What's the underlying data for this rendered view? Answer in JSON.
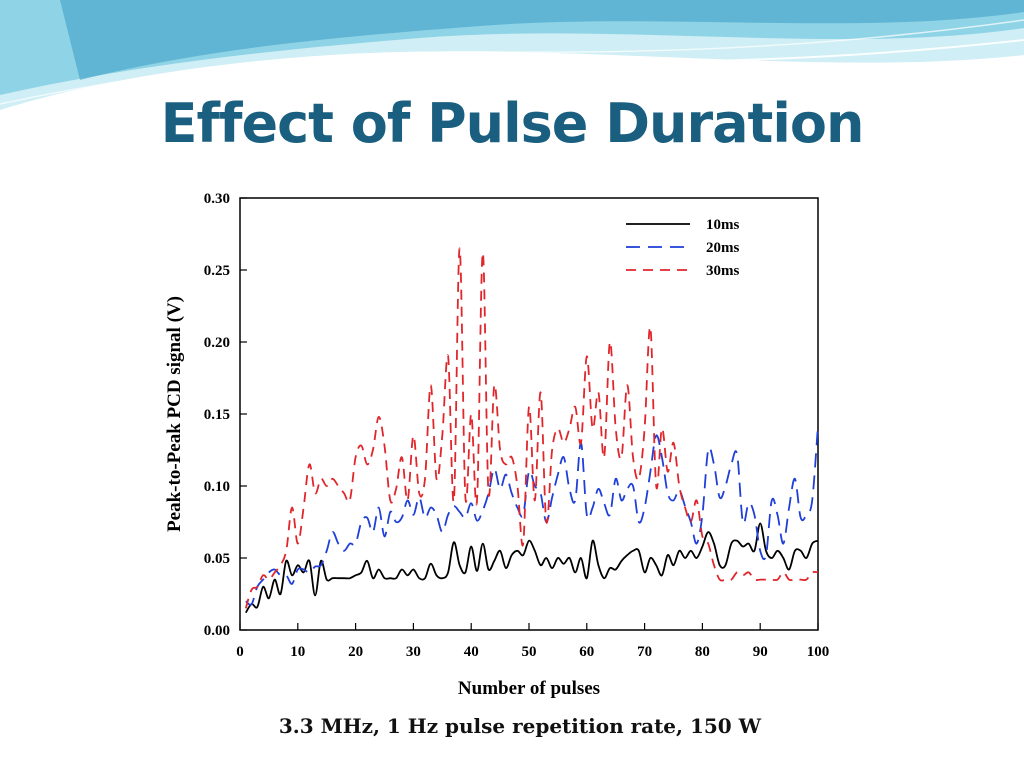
{
  "slide": {
    "title": "Effect of Pulse Duration",
    "caption": "3.3 MHz, 1 Hz pulse repetition rate, 150 W"
  },
  "colors": {
    "title": "#1b5f80",
    "swoosh_light": "#cfeef5",
    "swoosh_mid": "#8fd3e6",
    "swoosh_dark": "#3a9cc4"
  },
  "chart_data": {
    "type": "line",
    "title": "",
    "xlabel": "Number of pulses",
    "ylabel": "Peak-to-Peak PCD signal  (V)",
    "xlim": [
      0,
      100
    ],
    "ylim": [
      0,
      0.3
    ],
    "xticks": [
      0,
      10,
      20,
      30,
      40,
      50,
      60,
      70,
      80,
      90,
      100
    ],
    "yticks": [
      0.0,
      0.05,
      0.1,
      0.15,
      0.2,
      0.25,
      0.3
    ],
    "ytick_labels": [
      "0.00",
      "0.05",
      "0.10",
      "0.15",
      "0.20",
      "0.25",
      "0.30"
    ],
    "grid": false,
    "legend_position": "top-right",
    "series": [
      {
        "name": "10ms",
        "color": "#000000",
        "dash": "solid",
        "x": [
          1,
          2,
          3,
          4,
          5,
          6,
          7,
          8,
          9,
          10,
          11,
          12,
          13,
          14,
          15,
          16,
          17,
          18,
          19,
          20,
          21,
          22,
          23,
          24,
          25,
          26,
          27,
          28,
          29,
          30,
          31,
          32,
          33,
          34,
          35,
          36,
          37,
          38,
          39,
          40,
          41,
          42,
          43,
          44,
          45,
          46,
          47,
          48,
          49,
          50,
          51,
          52,
          53,
          54,
          55,
          56,
          57,
          58,
          59,
          60,
          61,
          62,
          63,
          64,
          65,
          66,
          67,
          68,
          69,
          70,
          71,
          72,
          73,
          74,
          75,
          76,
          77,
          78,
          79,
          80,
          81,
          82,
          83,
          84,
          85,
          86,
          87,
          88,
          89,
          90,
          91,
          92,
          93,
          94,
          95,
          96,
          97,
          98,
          99,
          100
        ],
        "y": [
          0.012,
          0.018,
          0.016,
          0.03,
          0.022,
          0.035,
          0.025,
          0.048,
          0.038,
          0.045,
          0.04,
          0.048,
          0.024,
          0.048,
          0.035,
          0.036,
          0.036,
          0.036,
          0.036,
          0.038,
          0.04,
          0.048,
          0.036,
          0.042,
          0.036,
          0.036,
          0.036,
          0.042,
          0.038,
          0.042,
          0.036,
          0.036,
          0.046,
          0.038,
          0.036,
          0.04,
          0.061,
          0.045,
          0.04,
          0.058,
          0.041,
          0.06,
          0.042,
          0.048,
          0.055,
          0.043,
          0.052,
          0.055,
          0.052,
          0.062,
          0.055,
          0.045,
          0.05,
          0.043,
          0.05,
          0.046,
          0.05,
          0.04,
          0.05,
          0.036,
          0.062,
          0.045,
          0.036,
          0.043,
          0.042,
          0.048,
          0.052,
          0.055,
          0.055,
          0.04,
          0.05,
          0.045,
          0.038,
          0.052,
          0.045,
          0.055,
          0.05,
          0.055,
          0.05,
          0.058,
          0.068,
          0.06,
          0.045,
          0.045,
          0.06,
          0.062,
          0.058,
          0.06,
          0.055,
          0.074,
          0.055,
          0.05,
          0.055,
          0.05,
          0.042,
          0.055,
          0.055,
          0.05,
          0.06,
          0.062
        ]
      },
      {
        "name": "20ms",
        "color": "#1f3fd8",
        "dash": "long-dash",
        "x": [
          1,
          2,
          3,
          4,
          5,
          6,
          7,
          8,
          9,
          10,
          11,
          12,
          13,
          14,
          15,
          16,
          17,
          18,
          19,
          20,
          21,
          22,
          23,
          24,
          25,
          26,
          27,
          28,
          29,
          30,
          31,
          32,
          33,
          34,
          35,
          36,
          37,
          38,
          39,
          40,
          41,
          42,
          43,
          44,
          45,
          46,
          47,
          48,
          49,
          50,
          51,
          52,
          53,
          54,
          55,
          56,
          57,
          58,
          59,
          60,
          61,
          62,
          63,
          64,
          65,
          66,
          67,
          68,
          69,
          70,
          71,
          72,
          73,
          74,
          75,
          76,
          77,
          78,
          79,
          80,
          81,
          82,
          83,
          84,
          85,
          86,
          87,
          88,
          89,
          90,
          91,
          92,
          93,
          94,
          95,
          96,
          97,
          98,
          99,
          100
        ],
        "y": [
          0.02,
          0.018,
          0.03,
          0.035,
          0.04,
          0.042,
          0.038,
          0.038,
          0.032,
          0.042,
          0.042,
          0.04,
          0.044,
          0.045,
          0.055,
          0.068,
          0.06,
          0.055,
          0.06,
          0.06,
          0.075,
          0.078,
          0.068,
          0.085,
          0.065,
          0.082,
          0.075,
          0.078,
          0.09,
          0.08,
          0.092,
          0.078,
          0.085,
          0.08,
          0.068,
          0.08,
          0.086,
          0.082,
          0.078,
          0.088,
          0.076,
          0.083,
          0.095,
          0.112,
          0.098,
          0.108,
          0.095,
          0.085,
          0.08,
          0.11,
          0.1,
          0.095,
          0.075,
          0.092,
          0.108,
          0.12,
          0.098,
          0.09,
          0.13,
          0.08,
          0.085,
          0.098,
          0.088,
          0.08,
          0.105,
          0.09,
          0.098,
          0.1,
          0.075,
          0.085,
          0.11,
          0.135,
          0.12,
          0.095,
          0.09,
          0.097,
          0.086,
          0.075,
          0.06,
          0.08,
          0.125,
          0.115,
          0.092,
          0.1,
          0.115,
          0.122,
          0.075,
          0.088,
          0.08,
          0.055,
          0.052,
          0.09,
          0.08,
          0.06,
          0.085,
          0.105,
          0.078,
          0.08,
          0.09,
          0.142
        ]
      },
      {
        "name": "30ms",
        "color": "#e0262b",
        "dash": "dash",
        "x": [
          1,
          2,
          3,
          4,
          5,
          6,
          7,
          8,
          9,
          10,
          11,
          12,
          13,
          14,
          15,
          16,
          17,
          18,
          19,
          20,
          21,
          22,
          23,
          24,
          25,
          26,
          27,
          28,
          29,
          30,
          31,
          32,
          33,
          34,
          35,
          36,
          37,
          38,
          39,
          40,
          41,
          42,
          43,
          44,
          45,
          46,
          47,
          48,
          49,
          50,
          51,
          52,
          53,
          54,
          55,
          56,
          57,
          58,
          59,
          60,
          61,
          62,
          63,
          64,
          65,
          66,
          67,
          68,
          69,
          70,
          71,
          72,
          73,
          74,
          75,
          76,
          77,
          78,
          79,
          80,
          81,
          82,
          83,
          84,
          85,
          86,
          87,
          88,
          89,
          90,
          91,
          92,
          93,
          94,
          95,
          96,
          97,
          98,
          99,
          100
        ],
        "y": [
          0.015,
          0.028,
          0.03,
          0.038,
          0.035,
          0.04,
          0.045,
          0.055,
          0.085,
          0.06,
          0.085,
          0.115,
          0.095,
          0.105,
          0.1,
          0.105,
          0.1,
          0.095,
          0.09,
          0.12,
          0.128,
          0.115,
          0.125,
          0.148,
          0.128,
          0.09,
          0.098,
          0.12,
          0.09,
          0.135,
          0.095,
          0.105,
          0.17,
          0.105,
          0.135,
          0.19,
          0.09,
          0.265,
          0.092,
          0.15,
          0.09,
          0.262,
          0.095,
          0.17,
          0.125,
          0.115,
          0.12,
          0.1,
          0.06,
          0.155,
          0.09,
          0.165,
          0.075,
          0.125,
          0.14,
          0.13,
          0.14,
          0.155,
          0.13,
          0.19,
          0.14,
          0.165,
          0.12,
          0.2,
          0.14,
          0.12,
          0.17,
          0.12,
          0.105,
          0.14,
          0.21,
          0.1,
          0.14,
          0.11,
          0.13,
          0.1,
          0.085,
          0.075,
          0.09,
          0.065,
          0.06,
          0.045,
          0.035,
          0.035,
          0.035,
          0.04,
          0.038,
          0.04,
          0.035,
          0.035,
          0.035,
          0.035,
          0.035,
          0.04,
          0.035,
          0.035,
          0.035,
          0.035,
          0.04,
          0.04
        ]
      }
    ]
  }
}
